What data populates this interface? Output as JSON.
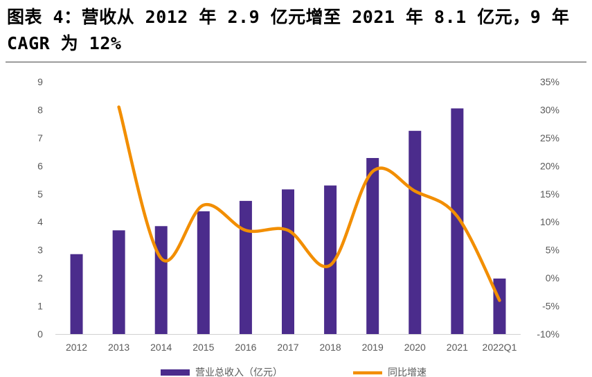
{
  "title": "图表 4：营收从 2012 年 2.9 亿元增至 2021 年 8.1 亿元，9 年 CAGR 为 12%",
  "chart_data": {
    "type": "bar",
    "categories": [
      "2012",
      "2013",
      "2014",
      "2015",
      "2016",
      "2017",
      "2018",
      "2019",
      "2020",
      "2021",
      "2022Q1"
    ],
    "series": [
      {
        "name": "营业总收入（亿元）",
        "type": "bar",
        "axis": "left",
        "color": "#4b2c8c",
        "values": [
          2.85,
          3.7,
          3.85,
          4.38,
          4.75,
          5.16,
          5.3,
          6.28,
          7.25,
          8.05,
          1.98
        ]
      },
      {
        "name": "同比增速",
        "type": "line",
        "axis": "right",
        "color": "#f28e00",
        "values": [
          null,
          30.5,
          3.5,
          13.0,
          8.5,
          8.5,
          2.3,
          19.0,
          15.5,
          11.0,
          -4.0
        ]
      }
    ],
    "y_left": {
      "lim": [
        0,
        9
      ],
      "ticks": [
        "0",
        "1",
        "2",
        "3",
        "4",
        "5",
        "6",
        "7",
        "8",
        "9"
      ]
    },
    "y_right": {
      "lim": [
        -10,
        35
      ],
      "ticks": [
        "-10%",
        "-5%",
        "0%",
        "5%",
        "10%",
        "15%",
        "20%",
        "25%",
        "30%",
        "35%"
      ]
    },
    "grid": false,
    "legend_position": "bottom"
  }
}
